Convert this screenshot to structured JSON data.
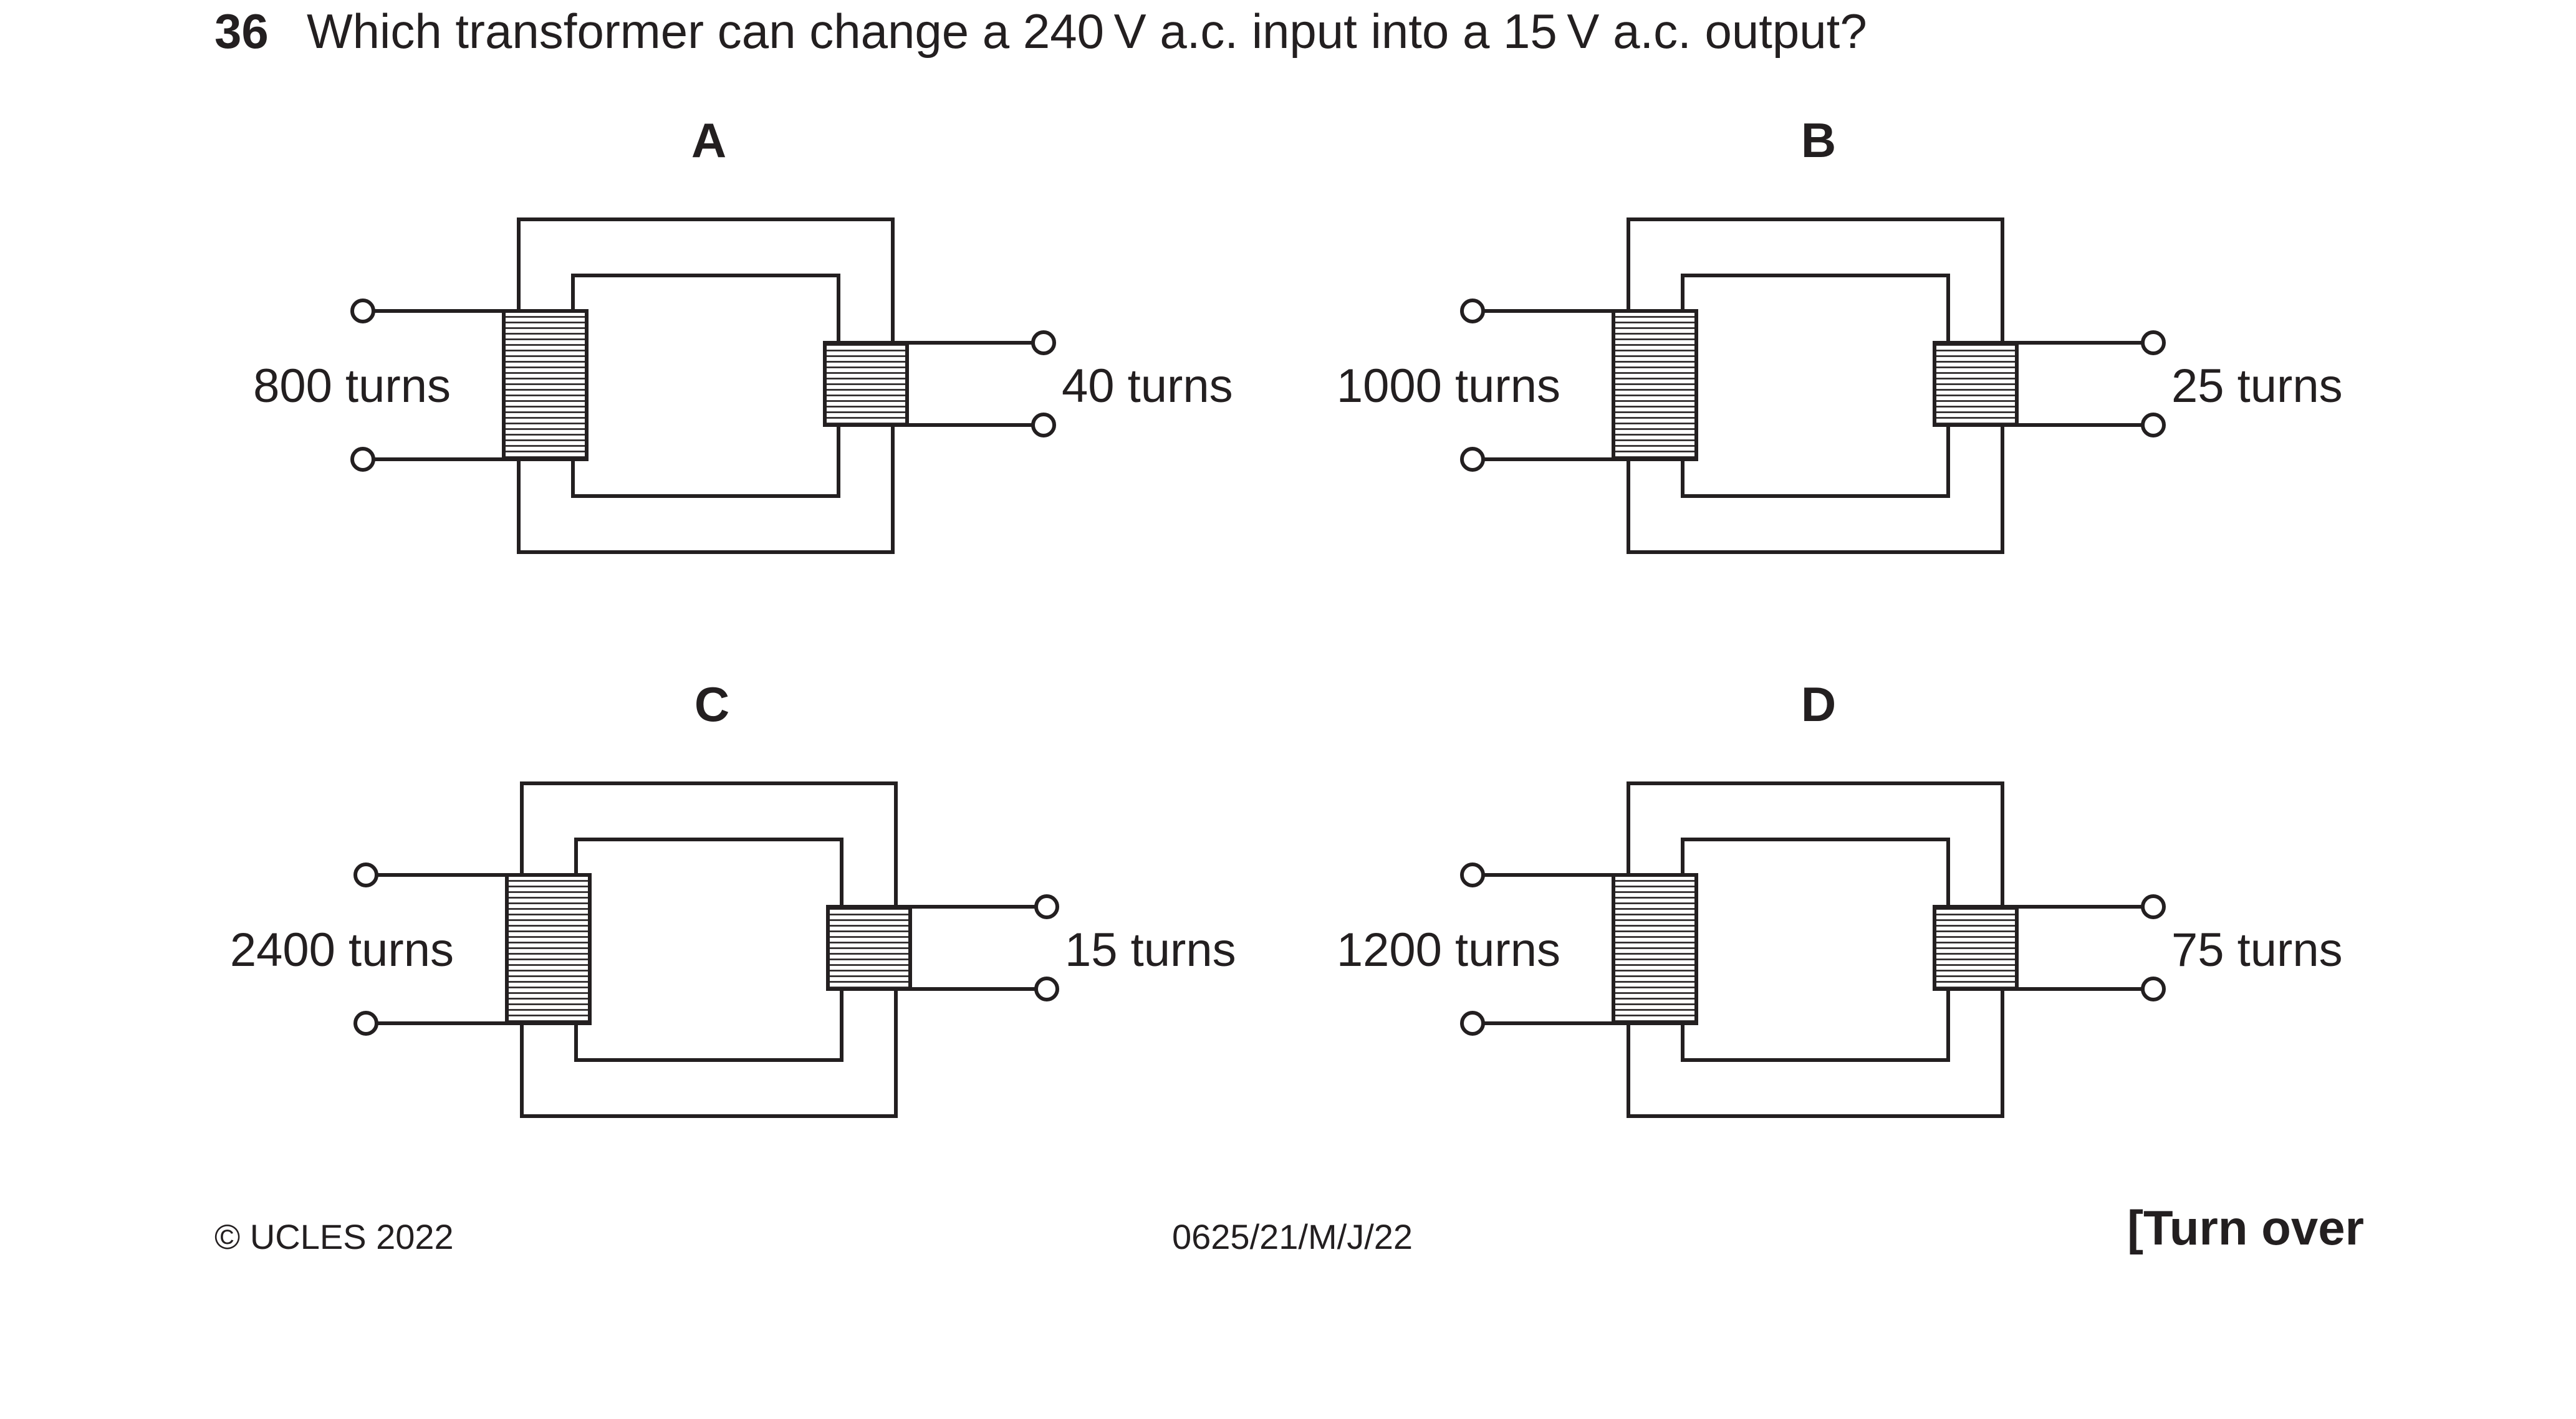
{
  "question": {
    "number": "36",
    "text": "Which transformer can change a 240 V a.c. input into a 15 V a.c. output?"
  },
  "options": [
    {
      "letter": "A",
      "primary_turns": "800 turns",
      "secondary_turns": "40 turns"
    },
    {
      "letter": "B",
      "primary_turns": "1000 turns",
      "secondary_turns": "25 turns"
    },
    {
      "letter": "C",
      "primary_turns": "2400 turns",
      "secondary_turns": "15 turns"
    },
    {
      "letter": "D",
      "primary_turns": "1200 turns",
      "secondary_turns": "75 turns"
    }
  ],
  "footer": {
    "copyright": "© UCLES 2022",
    "code": "0625/21/M/J/22",
    "turn_over": "[Turn over"
  }
}
